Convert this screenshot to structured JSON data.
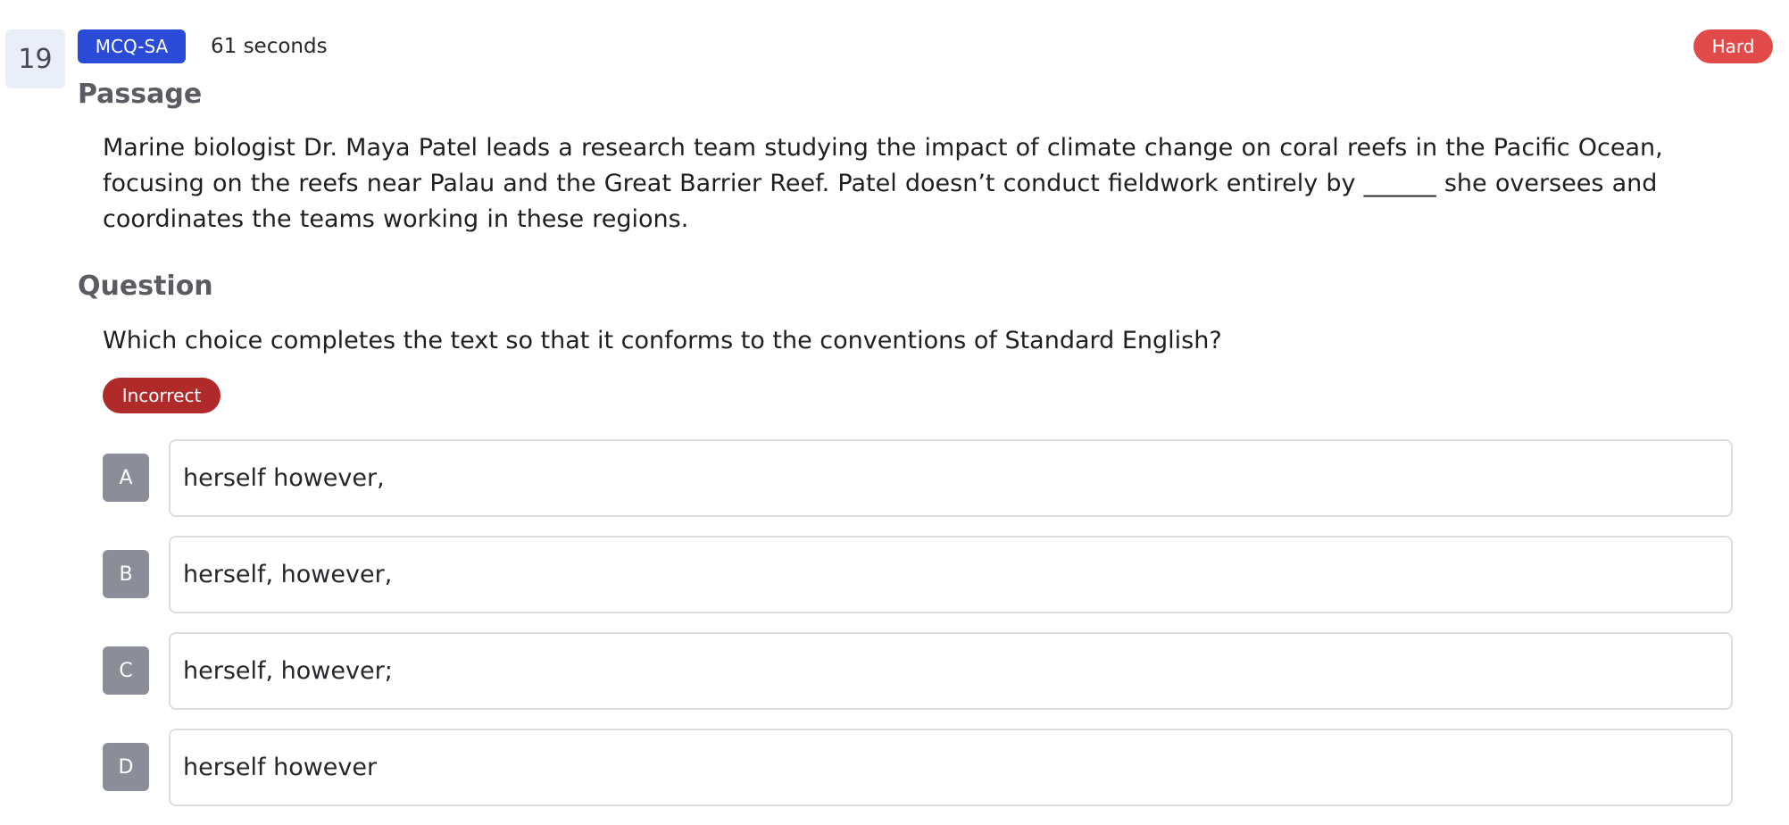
{
  "header": {
    "question_number": "19",
    "question_type": "MCQ-SA",
    "time_spent": "61 seconds",
    "difficulty": "Hard"
  },
  "passage": {
    "heading": "Passage",
    "text": "Marine biologist Dr. Maya Patel leads a research team studying the impact of climate change on coral reefs in the Pacific Ocean, focusing on the reefs near Palau and the Great Barrier Reef. Patel doesn’t conduct fieldwork entirely by ______ she oversees and coordinates the teams working in these regions."
  },
  "question": {
    "heading": "Question",
    "text": "Which choice completes the text so that it conforms to the conventions of Standard English?",
    "result": "Incorrect"
  },
  "choices": [
    {
      "letter": "A",
      "text": "herself however,"
    },
    {
      "letter": "B",
      "text": "herself, however,"
    },
    {
      "letter": "C",
      "text": "herself, however;"
    },
    {
      "letter": "D",
      "text": "herself however"
    }
  ],
  "colors": {
    "type_badge": "#2a4bd7",
    "difficulty_badge": "#e24a4a",
    "result_badge": "#b02a2a",
    "choice_letter": "#8b8e98"
  }
}
